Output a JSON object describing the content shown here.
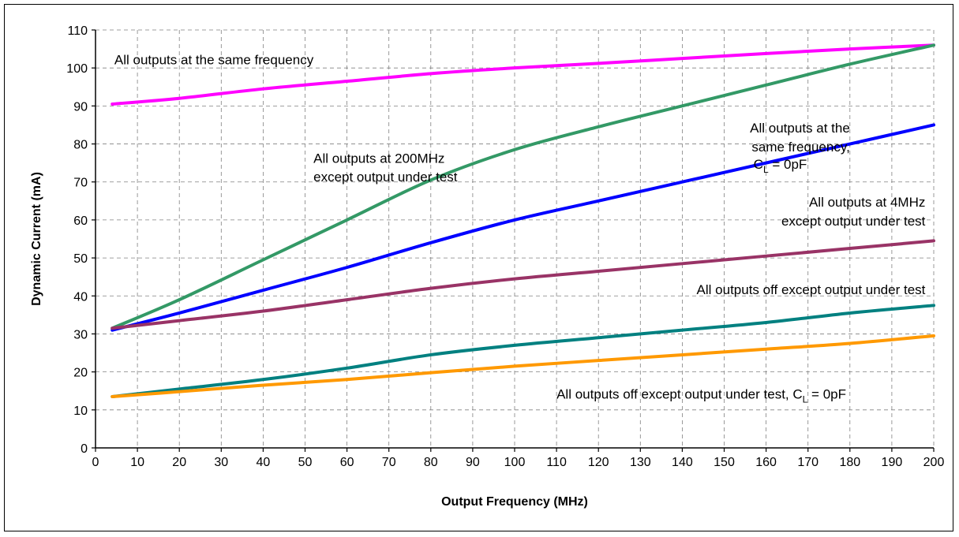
{
  "chart_data": {
    "type": "line",
    "xlabel": "Output Frequency (MHz)",
    "ylabel": "Dynamic Current (mA)",
    "xlim": [
      0,
      200
    ],
    "ylim": [
      0,
      110
    ],
    "x_ticks": [
      "0",
      "10",
      "20",
      "30",
      "40",
      "50",
      "60",
      "70",
      "80",
      "90",
      "100",
      "110",
      "120",
      "130",
      "140",
      "150",
      "160",
      "170",
      "180",
      "190",
      "200"
    ],
    "y_ticks": [
      "0",
      "10",
      "20",
      "30",
      "40",
      "50",
      "60",
      "70",
      "80",
      "90",
      "100",
      "110"
    ],
    "grid": true,
    "series": [
      {
        "name": "All outputs at the same frequency",
        "color": "#ff00ff",
        "points": [
          [
            4,
            90.5
          ],
          [
            20,
            92
          ],
          [
            40,
            94.5
          ],
          [
            60,
            96.5
          ],
          [
            80,
            98.5
          ],
          [
            100,
            100
          ],
          [
            120,
            101.2
          ],
          [
            140,
            102.5
          ],
          [
            160,
            103.8
          ],
          [
            180,
            105
          ],
          [
            200,
            106
          ]
        ]
      },
      {
        "name": "All outputs at 200MHz except output under test",
        "color": "#339966",
        "points": [
          [
            4,
            31.5
          ],
          [
            20,
            39
          ],
          [
            40,
            49.5
          ],
          [
            60,
            60
          ],
          [
            80,
            70.5
          ],
          [
            100,
            78.5
          ],
          [
            120,
            84.5
          ],
          [
            140,
            90
          ],
          [
            160,
            95.5
          ],
          [
            180,
            101
          ],
          [
            200,
            106
          ]
        ]
      },
      {
        "name": "All outputs at the same frequency, C_L = 0pF",
        "color": "#0000ff",
        "points": [
          [
            4,
            31
          ],
          [
            20,
            35.5
          ],
          [
            40,
            41.5
          ],
          [
            60,
            47.5
          ],
          [
            80,
            54
          ],
          [
            100,
            60
          ],
          [
            120,
            65
          ],
          [
            140,
            70
          ],
          [
            160,
            75
          ],
          [
            180,
            80
          ],
          [
            200,
            85
          ]
        ]
      },
      {
        "name": "All outputs at 4MHz except output under test",
        "color": "#993366",
        "points": [
          [
            4,
            31.5
          ],
          [
            20,
            33.5
          ],
          [
            40,
            36
          ],
          [
            60,
            39
          ],
          [
            80,
            42
          ],
          [
            100,
            44.5
          ],
          [
            120,
            46.5
          ],
          [
            140,
            48.5
          ],
          [
            160,
            50.5
          ],
          [
            180,
            52.5
          ],
          [
            200,
            54.5
          ]
        ]
      },
      {
        "name": "All outputs off except output under test",
        "color": "#008080",
        "points": [
          [
            4,
            13.5
          ],
          [
            20,
            15.5
          ],
          [
            40,
            18
          ],
          [
            60,
            21
          ],
          [
            80,
            24.5
          ],
          [
            100,
            27
          ],
          [
            120,
            29
          ],
          [
            140,
            31
          ],
          [
            160,
            33
          ],
          [
            180,
            35.5
          ],
          [
            200,
            37.5
          ]
        ]
      },
      {
        "name": "All outputs off except output under test, C_L = 0pF",
        "color": "#ff9900",
        "points": [
          [
            4,
            13.5
          ],
          [
            20,
            14.8
          ],
          [
            40,
            16.5
          ],
          [
            60,
            18
          ],
          [
            80,
            19.8
          ],
          [
            100,
            21.5
          ],
          [
            120,
            23
          ],
          [
            140,
            24.5
          ],
          [
            160,
            26
          ],
          [
            180,
            27.5
          ],
          [
            200,
            29.5
          ]
        ]
      }
    ],
    "annotations": [
      {
        "text": "All outputs at the same frequency",
        "x": 4.5,
        "y": 101
      },
      {
        "text": "All outputs at 200MHz",
        "x": 52,
        "y": 75
      },
      {
        "text": "except output under test",
        "x": 52,
        "y": 70.2
      },
      {
        "text": "All outputs at the",
        "x": 180,
        "y": 83,
        "anchor": "end"
      },
      {
        "text": "same frequency,",
        "x": 180,
        "y": 78,
        "anchor": "end"
      },
      {
        "text": "C",
        "sub": "L",
        "rest": " = 0pF",
        "x": 157,
        "y": 73.5
      },
      {
        "text": "All outputs at 4MHz",
        "x": 198,
        "y": 63.5,
        "anchor": "end"
      },
      {
        "text": "except output under test",
        "x": 198,
        "y": 58.5,
        "anchor": "end"
      },
      {
        "text": "All outputs off except output under test",
        "x": 198,
        "y": 40.5,
        "anchor": "end"
      },
      {
        "text": "All outputs off except output under test, C",
        "sub": "L",
        "rest": " = 0pF",
        "x": 110,
        "y": 13
      }
    ]
  }
}
